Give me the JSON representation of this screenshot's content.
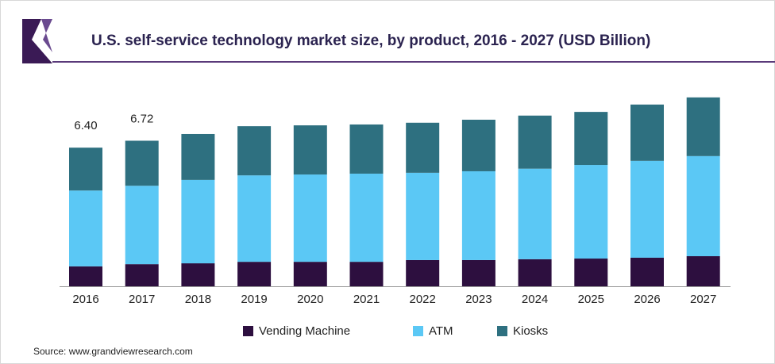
{
  "chart_data": {
    "type": "stacked_bar",
    "title": "U.S. self-service technology market size, by product, 2016 - 2027 (USD Billion)",
    "source": "Source: www.grandviewresearch.com",
    "categories": [
      "2016",
      "2017",
      "2018",
      "2019",
      "2020",
      "2021",
      "2022",
      "2023",
      "2024",
      "2025",
      "2026",
      "2027"
    ],
    "series": [
      {
        "name": "Vending Machine",
        "color": "#2d0f3f",
        "values": [
          0.92,
          1.02,
          1.06,
          1.13,
          1.13,
          1.13,
          1.21,
          1.21,
          1.25,
          1.28,
          1.32,
          1.39
        ]
      },
      {
        "name": "ATM",
        "color": "#5bc8f5",
        "values": [
          3.5,
          3.62,
          3.85,
          3.99,
          4.03,
          4.07,
          4.03,
          4.1,
          4.18,
          4.32,
          4.47,
          4.62
        ]
      },
      {
        "name": "Kiosks",
        "color": "#2e7080",
        "values": [
          1.98,
          2.08,
          2.12,
          2.27,
          2.27,
          2.27,
          2.31,
          2.38,
          2.45,
          2.45,
          2.6,
          2.71
        ]
      }
    ],
    "total_labels": [
      "6.40",
      "6.72"
    ],
    "ylim": [
      0,
      8.75
    ]
  }
}
